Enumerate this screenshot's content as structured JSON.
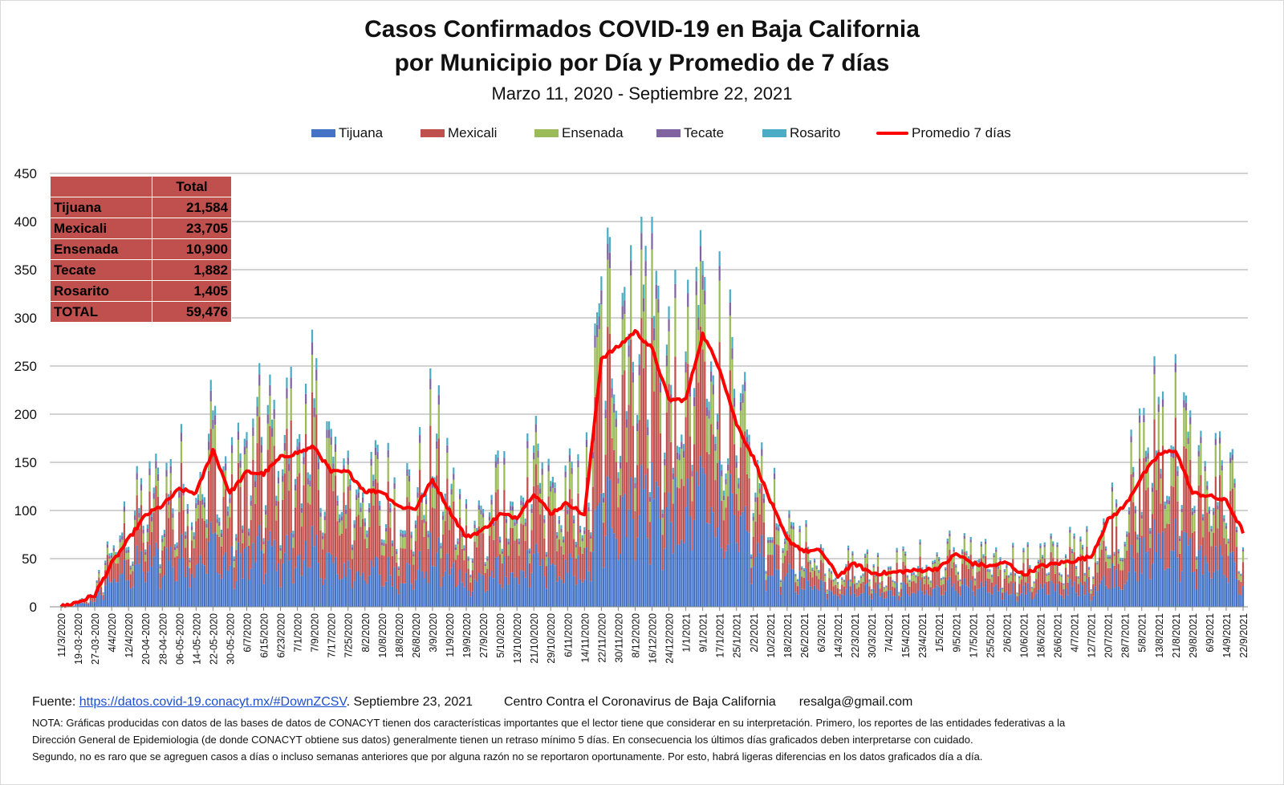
{
  "title_line1": "Casos Confirmados COVID-19 en Baja California",
  "title_line2": "por Municipio por Día y Promedio de 7 días",
  "subtitle": "Marzo 11, 2020  - Septiembre 22, 2021",
  "colors": {
    "Tijuana": "#4472c4",
    "Mexicali": "#c0504d",
    "Ensenada": "#9bbb59",
    "Tecate": "#8064a2",
    "Rosarito": "#4bacc6",
    "Promedio 7 días": "#ff0000"
  },
  "legend": [
    "Tijuana",
    "Mexicali",
    "Ensenada",
    "Tecate",
    "Rosarito",
    "Promedio 7 días"
  ],
  "summary_table": {
    "header": "Total",
    "rows": [
      {
        "label": "Tijuana",
        "value": "21,584"
      },
      {
        "label": "Mexicali",
        "value": "23,705"
      },
      {
        "label": "Ensenada",
        "value": "10,900"
      },
      {
        "label": "Tecate",
        "value": "1,882"
      },
      {
        "label": "Rosarito",
        "value": "1,405"
      },
      {
        "label": "TOTAL",
        "value": "59,476"
      }
    ]
  },
  "chart_data": {
    "type": "bar",
    "stacked": true,
    "ylim": [
      0,
      450
    ],
    "yticks": [
      0,
      50,
      100,
      150,
      200,
      250,
      300,
      350,
      400,
      450
    ],
    "grid": true,
    "x_tick_labels": [
      "11/3/2020",
      "19-03-2020",
      "27-03-2020",
      "4/4/2020",
      "12/4/2020",
      "20-04-2020",
      "28-04-2020",
      "06-05-2020",
      "14-05-2020",
      "22-05-2020",
      "30-05-2020",
      "6/7/2020",
      "6/15/2020",
      "6/23/2020",
      "7/1/2020",
      "7/9/2020",
      "7/17/2020",
      "7/25/2020",
      "8/2/2020",
      "10/8/2020",
      "18/8/2020",
      "26/8/2020",
      "3/9/2020",
      "11/9/2020",
      "19/9/2020",
      "27/9/2020",
      "5/10/2020",
      "13/10/2020",
      "21/10/2020",
      "29/10/2020",
      "6/11/2020",
      "14/11/2020",
      "22/11/2020",
      "30/11/2020",
      "8/12/2020",
      "16/12/2020",
      "24/12/2020",
      "1/1/2021",
      "9/1/2021",
      "17/1/2021",
      "25/1/2021",
      "2/2/2021",
      "10/2/2021",
      "18/2/2021",
      "26/2/2021",
      "6/3/2021",
      "14/3/2021",
      "22/3/2021",
      "30/3/2021",
      "7/4/2021",
      "15/4/2021",
      "23/4/2021",
      "1/5/2021",
      "9/5/2021",
      "17/5/2021",
      "25/5/2021",
      "2/6/2021",
      "10/6/2021",
      "18/6/2021",
      "26/6/2021",
      "4/7/2021",
      "12/7/2021",
      "20/7/2021",
      "28/7/2021",
      "5/8/2021",
      "13/8/2021",
      "21/8/2021",
      "29/8/2021",
      "6/9/2021",
      "14/9/2021",
      "22/9/2021"
    ],
    "days_per_tick": 8,
    "total_keypoints": [
      [
        0,
        0
      ],
      [
        8,
        5
      ],
      [
        16,
        15
      ],
      [
        24,
        70
      ],
      [
        32,
        90
      ],
      [
        40,
        115
      ],
      [
        48,
        125
      ],
      [
        56,
        135
      ],
      [
        64,
        140
      ],
      [
        72,
        185
      ],
      [
        80,
        120
      ],
      [
        88,
        160
      ],
      [
        96,
        180
      ],
      [
        104,
        185
      ],
      [
        112,
        190
      ],
      [
        120,
        200
      ],
      [
        128,
        160
      ],
      [
        136,
        140
      ],
      [
        144,
        140
      ],
      [
        152,
        130
      ],
      [
        160,
        120
      ],
      [
        168,
        120
      ],
      [
        176,
        180
      ],
      [
        184,
        130
      ],
      [
        192,
        90
      ],
      [
        200,
        95
      ],
      [
        208,
        120
      ],
      [
        216,
        120
      ],
      [
        224,
        140
      ],
      [
        232,
        120
      ],
      [
        240,
        130
      ],
      [
        248,
        110
      ],
      [
        256,
        290
      ],
      [
        264,
        330
      ],
      [
        272,
        340
      ],
      [
        280,
        330
      ],
      [
        288,
        250
      ],
      [
        296,
        230
      ],
      [
        304,
        350
      ],
      [
        312,
        280
      ],
      [
        320,
        200
      ],
      [
        328,
        140
      ],
      [
        336,
        110
      ],
      [
        344,
        70
      ],
      [
        352,
        70
      ],
      [
        360,
        60
      ],
      [
        368,
        40
      ],
      [
        376,
        50
      ],
      [
        384,
        45
      ],
      [
        392,
        45
      ],
      [
        400,
        45
      ],
      [
        408,
        50
      ],
      [
        416,
        50
      ],
      [
        424,
        65
      ],
      [
        432,
        55
      ],
      [
        440,
        50
      ],
      [
        448,
        55
      ],
      [
        456,
        45
      ],
      [
        464,
        55
      ],
      [
        472,
        55
      ],
      [
        480,
        60
      ],
      [
        488,
        60
      ],
      [
        496,
        95
      ],
      [
        504,
        110
      ],
      [
        512,
        160
      ],
      [
        520,
        200
      ],
      [
        528,
        200
      ],
      [
        536,
        150
      ],
      [
        544,
        140
      ],
      [
        552,
        130
      ],
      [
        560,
        85
      ]
    ],
    "series_share": {
      "Tijuana": [
        [
          0,
          0.5
        ],
        [
          120,
          0.3
        ],
        [
          260,
          0.35
        ],
        [
          340,
          0.45
        ],
        [
          480,
          0.35
        ],
        [
          560,
          0.35
        ]
      ],
      "Mexicali": [
        [
          0,
          0.3
        ],
        [
          120,
          0.5
        ],
        [
          260,
          0.4
        ],
        [
          340,
          0.3
        ],
        [
          480,
          0.4
        ],
        [
          560,
          0.4
        ]
      ],
      "Ensenada": [
        [
          0,
          0.1
        ],
        [
          120,
          0.14
        ],
        [
          260,
          0.18
        ],
        [
          340,
          0.17
        ],
        [
          480,
          0.18
        ],
        [
          560,
          0.18
        ]
      ],
      "Tecate": [
        [
          0,
          0.05
        ],
        [
          560,
          0.035
        ]
      ],
      "Rosarito": [
        [
          0,
          0.05
        ],
        [
          560,
          0.035
        ]
      ]
    },
    "avg_keypoints": [
      [
        0,
        0
      ],
      [
        8,
        5
      ],
      [
        16,
        12
      ],
      [
        24,
        45
      ],
      [
        32,
        70
      ],
      [
        40,
        95
      ],
      [
        48,
        105
      ],
      [
        56,
        122
      ],
      [
        64,
        118
      ],
      [
        72,
        163
      ],
      [
        80,
        118
      ],
      [
        88,
        140
      ],
      [
        96,
        138
      ],
      [
        104,
        155
      ],
      [
        112,
        160
      ],
      [
        120,
        166
      ],
      [
        128,
        140
      ],
      [
        136,
        140
      ],
      [
        144,
        120
      ],
      [
        152,
        120
      ],
      [
        160,
        104
      ],
      [
        168,
        102
      ],
      [
        176,
        132
      ],
      [
        184,
        100
      ],
      [
        192,
        72
      ],
      [
        200,
        80
      ],
      [
        208,
        96
      ],
      [
        216,
        93
      ],
      [
        224,
        118
      ],
      [
        232,
        97
      ],
      [
        240,
        108
      ],
      [
        248,
        95
      ],
      [
        256,
        258
      ],
      [
        264,
        270
      ],
      [
        272,
        286
      ],
      [
        280,
        268
      ],
      [
        288,
        215
      ],
      [
        296,
        215
      ],
      [
        304,
        283
      ],
      [
        312,
        248
      ],
      [
        320,
        190
      ],
      [
        328,
        155
      ],
      [
        336,
        110
      ],
      [
        344,
        70
      ],
      [
        352,
        58
      ],
      [
        360,
        58
      ],
      [
        368,
        32
      ],
      [
        376,
        45
      ],
      [
        384,
        35
      ],
      [
        392,
        35
      ],
      [
        400,
        37
      ],
      [
        408,
        38
      ],
      [
        416,
        40
      ],
      [
        424,
        55
      ],
      [
        432,
        45
      ],
      [
        440,
        42
      ],
      [
        448,
        46
      ],
      [
        456,
        33
      ],
      [
        464,
        42
      ],
      [
        472,
        45
      ],
      [
        480,
        48
      ],
      [
        488,
        52
      ],
      [
        496,
        90
      ],
      [
        504,
        105
      ],
      [
        512,
        135
      ],
      [
        520,
        158
      ],
      [
        528,
        163
      ],
      [
        536,
        118
      ],
      [
        544,
        115
      ],
      [
        552,
        110
      ],
      [
        560,
        78
      ]
    ]
  },
  "footer": {
    "fuente_label": "Fuente:",
    "link": "https://datos.covid-19.conacyt.mx/#DownZCSV",
    "date": ". Septiembre 23, 2021",
    "center": "Centro Contra el Coronavirus de Baja California",
    "email": "resalga@gmail.com",
    "note1": "NOTA: Gráficas producidas con datos de las bases de datos de CONACYT tienen dos características importantes que el lector tiene que considerar en su interpretación.  Primero, los reportes de las entidades federativas  a la",
    "note2": "Dirección General  de Epidemiologia (de donde CONACYT obtiene sus datos) generalmente  tienen un retraso mínimo 5 días. En consecuencia los últimos días graficados deben interpretarse  con cuidado.",
    "note3": "Segundo, no es raro que se agreguen casos a días o incluso semanas anteriores que por alguna razón no se reportaron  oportunamente.  Por esto, habrá ligeras diferencias en los datos  graficados día a día."
  }
}
